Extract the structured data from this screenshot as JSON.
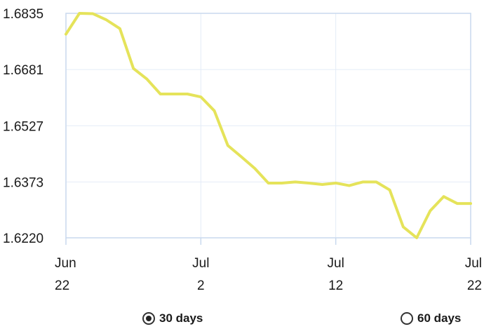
{
  "chart_data": {
    "type": "line",
    "title": "",
    "xlabel": "",
    "ylabel": "",
    "ylim": [
      1.622,
      1.6835
    ],
    "y_ticks": [
      "1.6835",
      "1.6681",
      "1.6527",
      "1.6373",
      "1.6220"
    ],
    "x_ticks": [
      {
        "date": "Jun 22",
        "line1": "Jun",
        "line2": "22"
      },
      {
        "date": "Jul 2",
        "line1": "Jul",
        "line2": "2"
      },
      {
        "date": "Jul 12",
        "line1": "Jul",
        "line2": "12"
      },
      {
        "date": "Jul 22",
        "line1": "Jul",
        "line2": "22"
      }
    ],
    "x": [
      "Jun 22",
      "Jun 23",
      "Jun 24",
      "Jun 25",
      "Jun 26",
      "Jun 27",
      "Jun 28",
      "Jun 29",
      "Jun 30",
      "Jul 1",
      "Jul 2",
      "Jul 3",
      "Jul 4",
      "Jul 5",
      "Jul 6",
      "Jul 7",
      "Jul 8",
      "Jul 9",
      "Jul 10",
      "Jul 11",
      "Jul 12",
      "Jul 13",
      "Jul 14",
      "Jul 15",
      "Jul 16",
      "Jul 17",
      "Jul 18",
      "Jul 19",
      "Jul 20",
      "Jul 21",
      "Jul 22"
    ],
    "series": [
      {
        "values": [
          1.6778,
          1.6835,
          1.6834,
          1.6817,
          1.6793,
          1.6684,
          1.6655,
          1.6614,
          1.6614,
          1.6614,
          1.6606,
          1.6568,
          1.6473,
          1.6442,
          1.641,
          1.637,
          1.637,
          1.6373,
          1.637,
          1.6366,
          1.637,
          1.6363,
          1.6373,
          1.6373,
          1.6351,
          1.625,
          1.622,
          1.6294,
          1.6333,
          1.6314,
          1.6314
        ],
        "color": "#e5e35a"
      }
    ],
    "grid": true,
    "legend": "none"
  },
  "controls": {
    "range_30": {
      "label": "30 days",
      "selected": true
    },
    "range_60": {
      "label": "60 days",
      "selected": false
    }
  }
}
